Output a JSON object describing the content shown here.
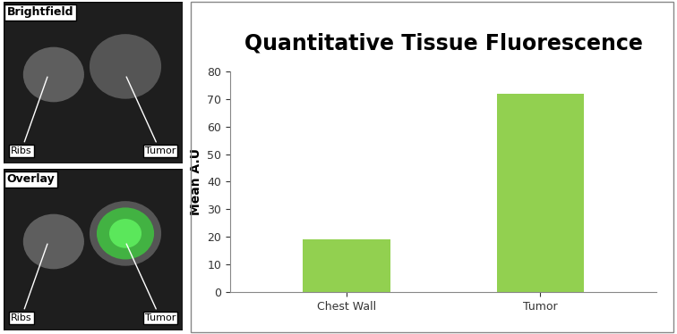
{
  "chart_data": {
    "type": "bar",
    "title": "Quantitative Tissue Fluorescence",
    "y_label": "Mean A.U",
    "categories": [
      "Chest Wall",
      "Tumor"
    ],
    "values": [
      19,
      72
    ],
    "color": "#92d050",
    "ylim": [
      0,
      80
    ],
    "yticks": [
      0,
      10,
      20,
      30,
      40,
      50,
      60,
      70,
      80
    ],
    "grid": false
  },
  "image_panels": [
    {
      "title": "Brightfield",
      "labels": [
        "Ribs",
        "Tumor"
      ]
    },
    {
      "title": "Overlay",
      "labels": [
        "Ribs",
        "Tumor"
      ]
    }
  ]
}
